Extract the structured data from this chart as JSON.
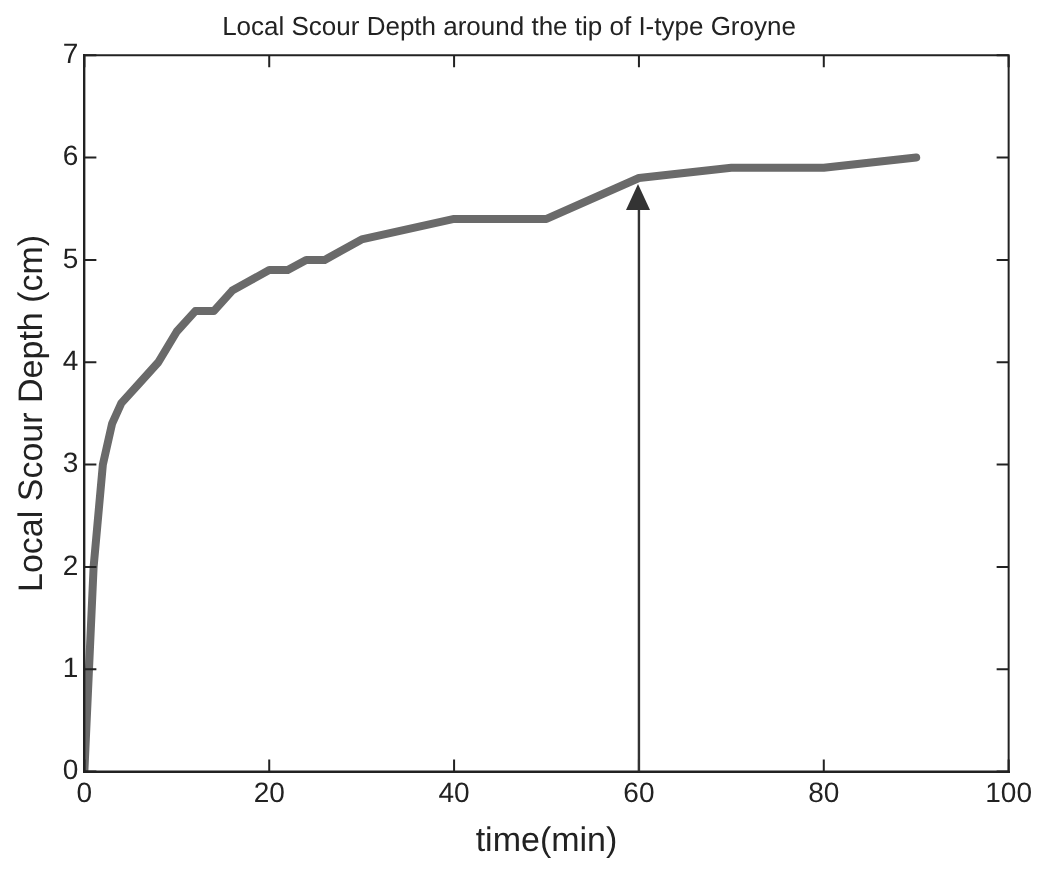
{
  "chart_data": {
    "type": "line",
    "title": "Local Scour Depth around the tip of I-type Groyne",
    "xlabel": "time(min)",
    "ylabel": "Local Scour Depth (cm)",
    "x": [
      0,
      0.5,
      1,
      2,
      3,
      4,
      6,
      8,
      10,
      12,
      14,
      16,
      18,
      20,
      22,
      24,
      26,
      30,
      40,
      50,
      60,
      70,
      80,
      90
    ],
    "series": [
      {
        "color": "#6a6a6a",
        "values": [
          0,
          1,
          2,
          3,
          3.4,
          3.6,
          3.8,
          4,
          4.3,
          4.5,
          4.5,
          4.7,
          4.8,
          4.9,
          4.9,
          5,
          5,
          5.2,
          5.4,
          5.4,
          5.8,
          5.9,
          5.9,
          6
        ]
      }
    ],
    "xlim": [
      0,
      100
    ],
    "xticks": [
      0,
      20,
      40,
      60,
      80,
      100
    ],
    "ylim": [
      0,
      7
    ],
    "yticks": [
      0,
      1,
      2,
      3,
      4,
      5,
      6,
      7
    ],
    "ref_lines": [
      {
        "axis": "x",
        "value": 60,
        "color": "#333333"
      }
    ],
    "grid": false,
    "legend": false,
    "marker": "none",
    "line_style": "solid"
  }
}
